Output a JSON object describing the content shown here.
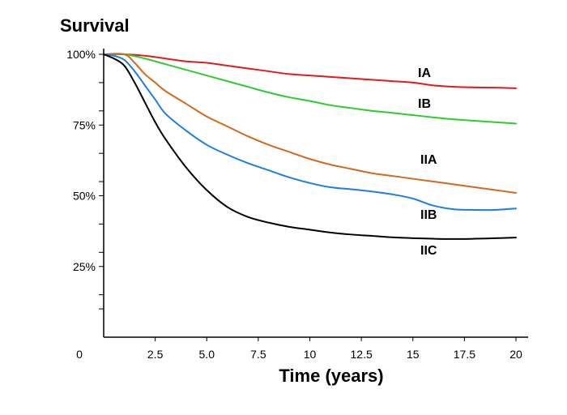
{
  "chart_data": {
    "type": "line",
    "title": "Survival",
    "xlabel": "Time (years)",
    "ylabel": "",
    "xlim": [
      0,
      20
    ],
    "ylim": [
      0,
      100
    ],
    "x_origin_label": "0",
    "x_ticks": [
      {
        "value": 2.5,
        "label": "2.5"
      },
      {
        "value": 5,
        "label": "5.0"
      },
      {
        "value": 7.5,
        "label": "7.5"
      },
      {
        "value": 10,
        "label": "10"
      },
      {
        "value": 12.5,
        "label": "12.5"
      },
      {
        "value": 15,
        "label": "15"
      },
      {
        "value": 17.5,
        "label": "17.5"
      },
      {
        "value": 20,
        "label": "20"
      }
    ],
    "y_ticks": [
      {
        "value": 100,
        "label": "100%"
      },
      {
        "value": 75,
        "label": "75%"
      },
      {
        "value": 50,
        "label": "50%"
      },
      {
        "value": 25,
        "label": "25%"
      }
    ],
    "y_minor_ticks": [
      90,
      80,
      65,
      55,
      40,
      30,
      15,
      10
    ],
    "grid": false,
    "series": [
      {
        "name": "IA",
        "color": "#e41a1c",
        "points": [
          [
            0,
            100
          ],
          [
            1,
            100
          ],
          [
            2,
            99.5
          ],
          [
            3,
            98.5
          ],
          [
            4,
            97.5
          ],
          [
            5,
            97
          ],
          [
            6,
            96
          ],
          [
            7,
            95
          ],
          [
            8,
            94
          ],
          [
            9,
            93
          ],
          [
            10,
            92.5
          ],
          [
            11,
            92
          ],
          [
            12,
            91.5
          ],
          [
            13,
            91
          ],
          [
            14,
            90.5
          ],
          [
            15,
            90
          ],
          [
            16,
            89
          ],
          [
            17,
            88.5
          ],
          [
            18,
            88.3
          ],
          [
            19,
            88.2
          ],
          [
            20,
            88
          ]
        ]
      },
      {
        "name": "IB",
        "color": "#2ecc2e",
        "points": [
          [
            0,
            100
          ],
          [
            1,
            100
          ],
          [
            2,
            98.5
          ],
          [
            3,
            96.5
          ],
          [
            4,
            94.5
          ],
          [
            5,
            92.5
          ],
          [
            6,
            90.5
          ],
          [
            7,
            88.5
          ],
          [
            8,
            86.5
          ],
          [
            9,
            84.8
          ],
          [
            10,
            83.5
          ],
          [
            11,
            82
          ],
          [
            12,
            81
          ],
          [
            13,
            80
          ],
          [
            14,
            79.3
          ],
          [
            15,
            78.5
          ],
          [
            16,
            77.7
          ],
          [
            17,
            77
          ],
          [
            18,
            76.5
          ],
          [
            19,
            76
          ],
          [
            20,
            75.5
          ]
        ]
      },
      {
        "name": "IIA",
        "color": "#d2691e",
        "points": [
          [
            0,
            100
          ],
          [
            1,
            100
          ],
          [
            1.5,
            97
          ],
          [
            2,
            93
          ],
          [
            2.5,
            90
          ],
          [
            3,
            87
          ],
          [
            4,
            82.5
          ],
          [
            5,
            78
          ],
          [
            6,
            74.5
          ],
          [
            7,
            71
          ],
          [
            8,
            68
          ],
          [
            9,
            65.5
          ],
          [
            10,
            63
          ],
          [
            11,
            61
          ],
          [
            12,
            59.5
          ],
          [
            13,
            58
          ],
          [
            14,
            57
          ],
          [
            15,
            56
          ],
          [
            16,
            55
          ],
          [
            17,
            54
          ],
          [
            18,
            53
          ],
          [
            19,
            52
          ],
          [
            20,
            51
          ]
        ]
      },
      {
        "name": "IIB",
        "color": "#1e7fe0",
        "points": [
          [
            0,
            100
          ],
          [
            0.5,
            99.5
          ],
          [
            1,
            98
          ],
          [
            1.5,
            94
          ],
          [
            2,
            89
          ],
          [
            2.5,
            84
          ],
          [
            3,
            79
          ],
          [
            4,
            73
          ],
          [
            5,
            68
          ],
          [
            6,
            64.5
          ],
          [
            7,
            61.5
          ],
          [
            8,
            59
          ],
          [
            9,
            56.5
          ],
          [
            10,
            54.5
          ],
          [
            11,
            53
          ],
          [
            12,
            52.3
          ],
          [
            13,
            51.5
          ],
          [
            14,
            50.5
          ],
          [
            15,
            49
          ],
          [
            16,
            46.5
          ],
          [
            17,
            45.2
          ],
          [
            18,
            45
          ],
          [
            19,
            45
          ],
          [
            20,
            45.5
          ]
        ]
      },
      {
        "name": "IIC",
        "color": "#000000",
        "points": [
          [
            0,
            100
          ],
          [
            0.5,
            98.5
          ],
          [
            1,
            96
          ],
          [
            1.5,
            90
          ],
          [
            2,
            83
          ],
          [
            2.5,
            76
          ],
          [
            3,
            70
          ],
          [
            4,
            60
          ],
          [
            5,
            52
          ],
          [
            6,
            46
          ],
          [
            7,
            42.5
          ],
          [
            8,
            40.5
          ],
          [
            9,
            39
          ],
          [
            10,
            38
          ],
          [
            11,
            37
          ],
          [
            12,
            36.3
          ],
          [
            13,
            35.8
          ],
          [
            14,
            35.3
          ],
          [
            15,
            35
          ],
          [
            16,
            34.8
          ],
          [
            17,
            34.7
          ],
          [
            18,
            34.8
          ],
          [
            19,
            35
          ],
          [
            20,
            35.2
          ]
        ]
      }
    ]
  }
}
